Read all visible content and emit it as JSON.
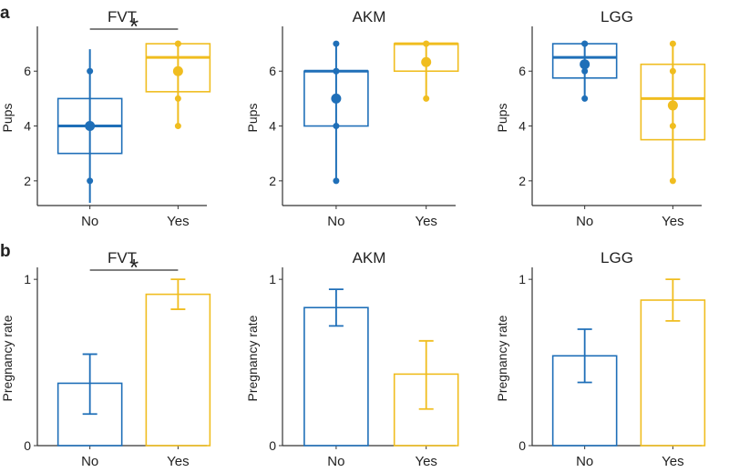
{
  "colors": {
    "no": "#1f6fb8",
    "yes": "#f0bd1f",
    "axis": "#333333",
    "text": "#222222"
  },
  "panel_labels": {
    "a": "a",
    "b": "b"
  },
  "chart_data": [
    {
      "type": "box",
      "row": "a",
      "title": "FVT",
      "ylabel": "Pups",
      "xlabel": "",
      "categories": [
        "No",
        "Yes"
      ],
      "ylim": [
        1.1,
        7.5
      ],
      "yticks": [
        2,
        4,
        6
      ],
      "boxes": [
        {
          "name": "No",
          "q1": 3,
          "median": 4,
          "q3": 5,
          "whisker_low": 1.2,
          "whisker_high": 6.8,
          "mean": 4,
          "points": [
            2,
            4,
            6
          ]
        },
        {
          "name": "Yes",
          "q1": 5.25,
          "median": 6.5,
          "q3": 7,
          "whisker_low": 4,
          "whisker_high": 7,
          "mean": 6,
          "points": [
            4,
            5,
            7,
            7
          ]
        }
      ],
      "significance": "*"
    },
    {
      "type": "box",
      "row": "a",
      "title": "AKM",
      "ylabel": "Pups",
      "xlabel": "",
      "categories": [
        "No",
        "Yes"
      ],
      "ylim": [
        1.1,
        7.5
      ],
      "yticks": [
        2,
        4,
        6
      ],
      "boxes": [
        {
          "name": "No",
          "q1": 4,
          "median": 6,
          "q3": 6,
          "whisker_low": 2,
          "whisker_high": 7,
          "mean": 5,
          "points": [
            2,
            4,
            6,
            6,
            7
          ]
        },
        {
          "name": "Yes",
          "q1": 6,
          "median": 7,
          "q3": 7,
          "whisker_low": 5,
          "whisker_high": 7,
          "mean": 6.33,
          "points": [
            5,
            7,
            7
          ]
        }
      ],
      "significance": ""
    },
    {
      "type": "box",
      "row": "a",
      "title": "LGG",
      "ylabel": "Pups",
      "xlabel": "",
      "categories": [
        "No",
        "Yes"
      ],
      "ylim": [
        1.1,
        7.5
      ],
      "yticks": [
        2,
        4,
        6
      ],
      "boxes": [
        {
          "name": "No",
          "q1": 5.75,
          "median": 6.5,
          "q3": 7,
          "whisker_low": 5,
          "whisker_high": 7,
          "mean": 6.25,
          "points": [
            5,
            6,
            7,
            7
          ]
        },
        {
          "name": "Yes",
          "q1": 3.5,
          "median": 5,
          "q3": 6.25,
          "whisker_low": 2,
          "whisker_high": 7,
          "mean": 4.75,
          "points": [
            2,
            4,
            6,
            7
          ]
        }
      ],
      "significance": ""
    },
    {
      "type": "bar",
      "row": "b",
      "title": "FVT",
      "ylabel": "Pregnancy rate",
      "xlabel": "",
      "categories": [
        "No",
        "Yes"
      ],
      "ylim": [
        0,
        1.05
      ],
      "yticks": [
        0,
        1
      ],
      "values": [
        0.375,
        0.91
      ],
      "err_low": [
        0.19,
        0.82
      ],
      "err_high": [
        0.55,
        1.0
      ],
      "significance": "*"
    },
    {
      "type": "bar",
      "row": "b",
      "title": "AKM",
      "ylabel": "Pregnancy rate",
      "xlabel": "",
      "categories": [
        "No",
        "Yes"
      ],
      "ylim": [
        0,
        1.05
      ],
      "yticks": [
        0,
        1
      ],
      "values": [
        0.83,
        0.43
      ],
      "err_low": [
        0.72,
        0.22
      ],
      "err_high": [
        0.94,
        0.63
      ],
      "significance": ""
    },
    {
      "type": "bar",
      "row": "b",
      "title": "LGG",
      "ylabel": "Pregnancy rate",
      "xlabel": "",
      "categories": [
        "No",
        "Yes"
      ],
      "ylim": [
        0,
        1.05
      ],
      "yticks": [
        0,
        1
      ],
      "values": [
        0.54,
        0.875
      ],
      "err_low": [
        0.38,
        0.75
      ],
      "err_high": [
        0.7,
        1.0
      ],
      "significance": ""
    }
  ]
}
